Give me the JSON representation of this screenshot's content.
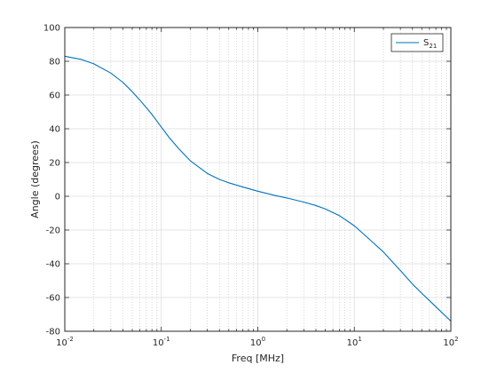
{
  "chart_data": {
    "type": "line",
    "title": "",
    "xlabel": "Freq [MHz]",
    "ylabel": "Angle (degrees)",
    "xscale": "log",
    "xlim": [
      0.01,
      100
    ],
    "ylim": [
      -80,
      100
    ],
    "x_tick_labels": [
      {
        "base": "10",
        "exp": "-2"
      },
      {
        "base": "10",
        "exp": "-1"
      },
      {
        "base": "10",
        "exp": "0"
      },
      {
        "base": "10",
        "exp": "1"
      },
      {
        "base": "10",
        "exp": "2"
      }
    ],
    "y_ticks": [
      -80,
      -60,
      -40,
      -20,
      0,
      20,
      40,
      60,
      80,
      100
    ],
    "grid": true,
    "minor_grid": true,
    "legend": {
      "placement": "top-right",
      "entries": [
        {
          "base": "S",
          "sub": "21"
        }
      ]
    },
    "series": [
      {
        "name": "S21",
        "color": "#0072BD",
        "x": [
          0.01,
          0.015,
          0.02,
          0.03,
          0.04,
          0.05,
          0.06,
          0.07,
          0.08,
          0.1,
          0.12,
          0.15,
          0.2,
          0.3,
          0.4,
          0.5,
          0.7,
          1,
          1.5,
          2,
          3,
          4,
          5,
          7,
          10,
          15,
          20,
          30,
          40,
          50,
          70,
          100
        ],
        "values": [
          83,
          81,
          78.5,
          73,
          67.5,
          62,
          57,
          52.5,
          48.5,
          41,
          35,
          28.5,
          21,
          13.5,
          10,
          8,
          5.5,
          3,
          0.5,
          -1,
          -3.5,
          -5.5,
          -7.5,
          -11.5,
          -17.5,
          -26.5,
          -33,
          -44,
          -52,
          -57.5,
          -65.5,
          -74
        ]
      }
    ]
  }
}
